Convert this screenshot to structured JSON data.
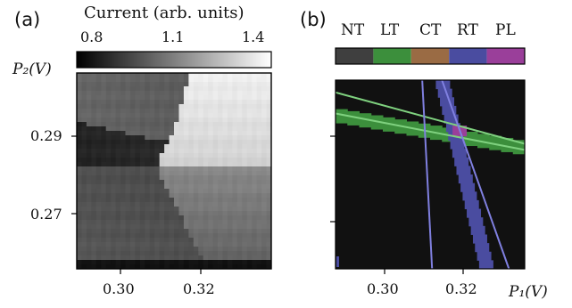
{
  "panel_a": {
    "label": "(a)",
    "colorbar": {
      "title": "Current (arb. units)",
      "ticks": [
        "0.8",
        "1.1",
        "1.4"
      ],
      "range": [
        0.65,
        1.45
      ]
    },
    "y_axis_label": "P₂(V)",
    "y_ticks": [
      "0.29",
      "0.27"
    ],
    "x_ticks": [
      "0.30",
      "0.32"
    ]
  },
  "panel_b": {
    "label": "(b)",
    "legend": [
      {
        "label": "NT",
        "color": "#3f3f3f"
      },
      {
        "label": "LT",
        "color": "#3c8f3c"
      },
      {
        "label": "CT",
        "color": "#9a6b44"
      },
      {
        "label": "RT",
        "color": "#4a4ca0"
      },
      {
        "label": "PL",
        "color": "#9a3f9a"
      }
    ],
    "x_axis_label": "P₁(V)",
    "x_ticks": [
      "0.30",
      "0.32"
    ],
    "background_color": "#111111",
    "fit_line_colors": {
      "lt": "#7fd17f",
      "rt": "#8080e0"
    }
  },
  "chart_data": [
    {
      "type": "heatmap",
      "title": "",
      "xlabel": "",
      "ylabel": "P₂(V)",
      "xlim": [
        0.289,
        0.337
      ],
      "ylim": [
        0.2555,
        0.2985
      ],
      "x_ticks": [
        0.3,
        0.32
      ],
      "y_ticks": [
        0.29,
        0.27
      ],
      "colorbar": {
        "label": "Current (arb. units)",
        "ticks": [
          0.8,
          1.1,
          1.4
        ]
      },
      "colormap": "greys",
      "description_regions": [
        {
          "region": "upper-left",
          "value_approx": 0.95
        },
        {
          "region": "upper-right",
          "value_approx": 1.4
        },
        {
          "region": "middle-left",
          "value_approx": 0.75
        },
        {
          "region": "lower-left",
          "value_approx": 0.9
        },
        {
          "region": "lower-right",
          "value_approx": 1.1
        }
      ]
    },
    {
      "type": "scatter",
      "title": "",
      "xlabel": "P₁(V)",
      "ylabel": "",
      "xlim": [
        0.289,
        0.337
      ],
      "ylim": [
        0.2555,
        0.2985
      ],
      "x_ticks": [
        0.3,
        0.32
      ],
      "legend": [
        "NT",
        "LT",
        "CT",
        "RT",
        "PL"
      ],
      "series": [
        {
          "name": "LT",
          "x": [
            0.289,
            0.337
          ],
          "y": [
            0.2905,
            0.283
          ]
        },
        {
          "name": "RT",
          "x": [
            0.316,
            0.3275
          ],
          "y": [
            0.2985,
            0.2555
          ]
        }
      ],
      "fit_lines": [
        {
          "x": [
            0.289,
            0.337
          ],
          "y": [
            0.2957,
            0.284
          ]
        },
        {
          "x": [
            0.289,
            0.337
          ],
          "y": [
            0.2909,
            0.2826
          ]
        },
        {
          "x": [
            0.311,
            0.3135
          ],
          "y": [
            0.2985,
            0.2555
          ]
        },
        {
          "x": [
            0.316,
            0.333
          ],
          "y": [
            0.2985,
            0.2555
          ]
        }
      ]
    }
  ]
}
